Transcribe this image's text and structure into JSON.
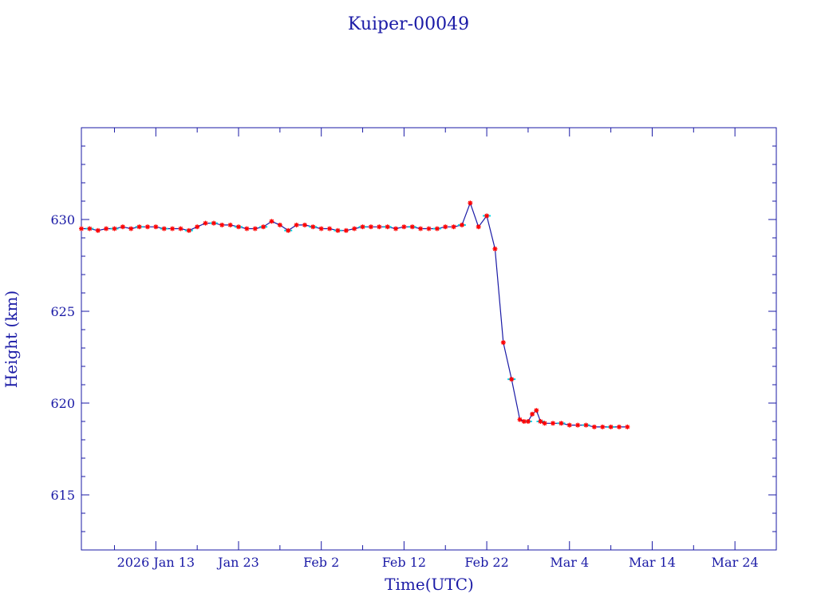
{
  "chart_data": {
    "type": "line",
    "title": "Kuiper-00049",
    "xlabel": "Time(UTC)",
    "ylabel": "Height (km)",
    "ylim": [
      612,
      635
    ],
    "xlim": [
      "2026-01-04",
      "2026-03-29"
    ],
    "x_tick_labels": [
      {
        "date": "2026-01-13",
        "label": "2026 Jan 13"
      },
      {
        "date": "2026-01-23",
        "label": "Jan 23"
      },
      {
        "date": "2026-02-02",
        "label": "Feb  2"
      },
      {
        "date": "2026-02-12",
        "label": "Feb 12"
      },
      {
        "date": "2026-02-22",
        "label": "Feb 22"
      },
      {
        "date": "2026-03-04",
        "label": "Mar  4"
      },
      {
        "date": "2026-03-14",
        "label": "Mar 14"
      },
      {
        "date": "2026-03-24",
        "label": "Mar 24"
      }
    ],
    "y_tick_labels": [
      {
        "value": 615,
        "label": "615"
      },
      {
        "value": 620,
        "label": "620"
      },
      {
        "value": 625,
        "label": "625"
      },
      {
        "value": 630,
        "label": "630"
      }
    ],
    "grid": false,
    "colors": {
      "axes": "#1a1aa6",
      "line": "#1a1aa6",
      "markers": "#ff0000",
      "highlight": "#00d8e8"
    },
    "series": [
      {
        "x": [
          "2026-01-04",
          "2026-01-05",
          "2026-01-06",
          "2026-01-07",
          "2026-01-08",
          "2026-01-09",
          "2026-01-10",
          "2026-01-11",
          "2026-01-12",
          "2026-01-13",
          "2026-01-14",
          "2026-01-15",
          "2026-01-16",
          "2026-01-17",
          "2026-01-18",
          "2026-01-19",
          "2026-01-20",
          "2026-01-21",
          "2026-01-22",
          "2026-01-23",
          "2026-01-24",
          "2026-01-25",
          "2026-01-26",
          "2026-01-27",
          "2026-01-28",
          "2026-01-29",
          "2026-01-30",
          "2026-01-31",
          "2026-02-01",
          "2026-02-02",
          "2026-02-03",
          "2026-02-04",
          "2026-02-05",
          "2026-02-06",
          "2026-02-07",
          "2026-02-08",
          "2026-02-09",
          "2026-02-10",
          "2026-02-11",
          "2026-02-12",
          "2026-02-13",
          "2026-02-14",
          "2026-02-15",
          "2026-02-16",
          "2026-02-17",
          "2026-02-18",
          "2026-02-19",
          "2026-02-20",
          "2026-02-21",
          "2026-02-22",
          "2026-02-23",
          "2026-02-24",
          "2026-02-25",
          "2026-02-26",
          "2026-02-26",
          "2026-02-27",
          "2026-02-27",
          "2026-02-28",
          "2026-02-28",
          "2026-03-01",
          "2026-03-02",
          "2026-03-03",
          "2026-03-04",
          "2026-03-05",
          "2026-03-06",
          "2026-03-07",
          "2026-03-08",
          "2026-03-09",
          "2026-03-10",
          "2026-03-11"
        ],
        "y": [
          629.5,
          629.5,
          629.4,
          629.5,
          629.5,
          629.6,
          629.5,
          629.6,
          629.6,
          629.6,
          629.5,
          629.5,
          629.5,
          629.4,
          629.6,
          629.8,
          629.8,
          629.7,
          629.7,
          629.6,
          629.5,
          629.5,
          629.6,
          629.9,
          629.7,
          629.4,
          629.7,
          629.7,
          629.6,
          629.5,
          629.5,
          629.4,
          629.4,
          629.5,
          629.6,
          629.6,
          629.6,
          629.6,
          629.5,
          629.6,
          629.6,
          629.5,
          629.5,
          629.5,
          629.6,
          629.6,
          629.7,
          630.9,
          629.6,
          630.2,
          628.4,
          623.3,
          621.3,
          619.1,
          619.0,
          619.0,
          619.4,
          619.6,
          619.0,
          618.9,
          618.9,
          618.9,
          618.8,
          618.8,
          618.8,
          618.7,
          618.7,
          618.7,
          618.7,
          618.7
        ]
      }
    ]
  }
}
